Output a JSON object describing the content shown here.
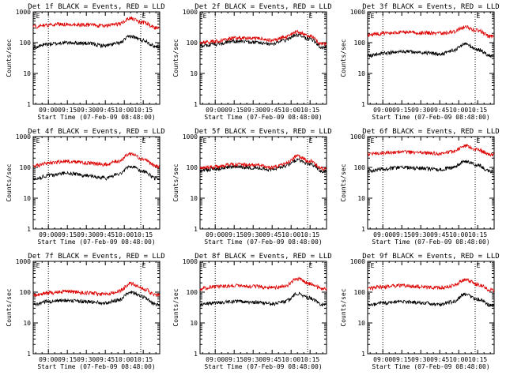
{
  "figure": {
    "background": "#ffffff",
    "events_color": "#000000",
    "lld_color": "#dd0000",
    "marker_label": "E"
  },
  "chart_data": [
    {
      "type": "line",
      "title": "Det 1f BLACK = Events, RED = LLD",
      "xlabel": "Start Time (07-Feb-09 08:48:00)",
      "ylabel": "Counts/sec",
      "yscale": "log",
      "ylim": [
        1,
        1000
      ],
      "x_ticks": [
        "09:00",
        "09:15",
        "09:30",
        "09:45",
        "10:00",
        "10:15"
      ],
      "y_ticks": [
        "1",
        "10",
        "100",
        "1000"
      ],
      "dotted_lines_at": [
        "09:00",
        "10:13"
      ],
      "series": [
        {
          "name": "Events",
          "color": "#000000",
          "x": [
            "08:48",
            "09:00",
            "09:15",
            "09:30",
            "09:45",
            "09:55",
            "10:05",
            "10:15",
            "10:25"
          ],
          "values": [
            70,
            90,
            100,
            95,
            80,
            95,
            160,
            120,
            75
          ]
        },
        {
          "name": "LLD",
          "color": "#dd0000",
          "x": [
            "08:48",
            "09:00",
            "09:15",
            "09:30",
            "09:45",
            "09:55",
            "10:05",
            "10:15",
            "10:25"
          ],
          "values": [
            330,
            380,
            400,
            380,
            350,
            400,
            620,
            450,
            310
          ]
        }
      ]
    },
    {
      "type": "line",
      "title": "Det 2f BLACK = Events, RED = LLD",
      "xlabel": "Start Time (07-Feb-09 08:48:00)",
      "ylabel": "Counts/sec",
      "yscale": "log",
      "ylim": [
        1,
        1000
      ],
      "x_ticks": [
        "09:00",
        "09:15",
        "09:30",
        "09:45",
        "10:00",
        "10:15"
      ],
      "y_ticks": [
        "1",
        "10",
        "100",
        "1000"
      ],
      "dotted_lines_at": [
        "09:00",
        "10:13"
      ],
      "series": [
        {
          "name": "Events",
          "color": "#000000",
          "x": [
            "08:48",
            "09:00",
            "09:15",
            "09:30",
            "09:45",
            "09:55",
            "10:05",
            "10:15",
            "10:25"
          ],
          "values": [
            80,
            90,
            110,
            105,
            90,
            120,
            180,
            130,
            70
          ]
        },
        {
          "name": "LLD",
          "color": "#dd0000",
          "x": [
            "08:48",
            "09:00",
            "09:15",
            "09:30",
            "09:45",
            "09:55",
            "10:05",
            "10:15",
            "10:25"
          ],
          "values": [
            100,
            110,
            140,
            140,
            120,
            150,
            220,
            160,
            90
          ]
        }
      ]
    },
    {
      "type": "line",
      "title": "Det 3f BLACK = Events, RED = LLD",
      "xlabel": "Start Time (07-Feb-09 08:48:00)",
      "ylabel": "Counts/sec",
      "yscale": "log",
      "ylim": [
        1,
        1000
      ],
      "x_ticks": [
        "09:00",
        "09:15",
        "09:30",
        "09:45",
        "10:00",
        "10:15"
      ],
      "y_ticks": [
        "1",
        "10",
        "100",
        "1000"
      ],
      "dotted_lines_at": [
        "09:00",
        "10:13"
      ],
      "series": [
        {
          "name": "Events",
          "color": "#000000",
          "x": [
            "08:48",
            "09:00",
            "09:15",
            "09:30",
            "09:45",
            "09:55",
            "10:05",
            "10:15",
            "10:25"
          ],
          "values": [
            38,
            45,
            52,
            48,
            42,
            55,
            90,
            60,
            38
          ]
        },
        {
          "name": "LLD",
          "color": "#dd0000",
          "x": [
            "08:48",
            "09:00",
            "09:15",
            "09:30",
            "09:45",
            "09:55",
            "10:05",
            "10:15",
            "10:25"
          ],
          "values": [
            180,
            200,
            220,
            210,
            200,
            220,
            320,
            250,
            160
          ]
        }
      ]
    },
    {
      "type": "line",
      "title": "Det 4f BLACK = Events, RED = LLD",
      "xlabel": "Start Time (07-Feb-09 08:48:00)",
      "ylabel": "Counts/sec",
      "yscale": "log",
      "ylim": [
        1,
        1000
      ],
      "x_ticks": [
        "09:00",
        "09:15",
        "09:30",
        "09:45",
        "10:00",
        "10:15"
      ],
      "y_ticks": [
        "1",
        "10",
        "100",
        "1000"
      ],
      "dotted_lines_at": [
        "09:00",
        "10:13"
      ],
      "series": [
        {
          "name": "Events",
          "color": "#000000",
          "x": [
            "08:48",
            "09:00",
            "09:15",
            "09:30",
            "09:45",
            "09:55",
            "10:05",
            "10:15",
            "10:25"
          ],
          "values": [
            40,
            55,
            65,
            55,
            45,
            60,
            110,
            75,
            45
          ]
        },
        {
          "name": "LLD",
          "color": "#dd0000",
          "x": [
            "08:48",
            "09:00",
            "09:15",
            "09:30",
            "09:45",
            "09:55",
            "10:05",
            "10:15",
            "10:25"
          ],
          "values": [
            110,
            140,
            160,
            140,
            125,
            160,
            280,
            190,
            110
          ]
        }
      ]
    },
    {
      "type": "line",
      "title": "Det 5f BLACK = Events, RED = LLD",
      "xlabel": "Start Time (07-Feb-09 08:48:00)",
      "ylabel": "Counts/sec",
      "yscale": "log",
      "ylim": [
        1,
        1000
      ],
      "x_ticks": [
        "09:00",
        "09:15",
        "09:30",
        "09:45",
        "10:00",
        "10:15"
      ],
      "y_ticks": [
        "1",
        "10",
        "100",
        "1000"
      ],
      "dotted_lines_at": [
        "09:00",
        "10:13"
      ],
      "series": [
        {
          "name": "Events",
          "color": "#000000",
          "x": [
            "08:48",
            "09:00",
            "09:15",
            "09:30",
            "09:45",
            "09:55",
            "10:05",
            "10:15",
            "10:25"
          ],
          "values": [
            80,
            90,
            105,
            100,
            85,
            110,
            180,
            130,
            75
          ]
        },
        {
          "name": "LLD",
          "color": "#dd0000",
          "x": [
            "08:48",
            "09:00",
            "09:15",
            "09:30",
            "09:45",
            "09:55",
            "10:05",
            "10:15",
            "10:25"
          ],
          "values": [
            95,
            105,
            125,
            120,
            100,
            130,
            230,
            160,
            90
          ]
        }
      ]
    },
    {
      "type": "line",
      "title": "Det 6f BLACK = Events, RED = LLD",
      "xlabel": "Start Time (07-Feb-09 08:48:00)",
      "ylabel": "Counts/sec",
      "yscale": "log",
      "ylim": [
        1,
        1000
      ],
      "x_ticks": [
        "09:00",
        "09:15",
        "09:30",
        "09:45",
        "10:00",
        "10:15"
      ],
      "y_ticks": [
        "1",
        "10",
        "100",
        "1000"
      ],
      "dotted_lines_at": [
        "09:00",
        "10:13"
      ],
      "series": [
        {
          "name": "Events",
          "color": "#000000",
          "x": [
            "08:48",
            "09:00",
            "09:15",
            "09:30",
            "09:45",
            "09:55",
            "10:05",
            "10:15",
            "10:25"
          ],
          "values": [
            75,
            90,
            100,
            95,
            85,
            100,
            160,
            120,
            75
          ]
        },
        {
          "name": "LLD",
          "color": "#dd0000",
          "x": [
            "08:48",
            "09:00",
            "09:15",
            "09:30",
            "09:45",
            "09:55",
            "10:05",
            "10:15",
            "10:25"
          ],
          "values": [
            270,
            300,
            320,
            300,
            280,
            320,
            500,
            380,
            260
          ]
        }
      ]
    },
    {
      "type": "line",
      "title": "Det 7f BLACK = Events, RED = LLD",
      "xlabel": "Start Time (07-Feb-09 08:48:00)",
      "ylabel": "Counts/sec",
      "yscale": "log",
      "ylim": [
        1,
        1000
      ],
      "x_ticks": [
        "09:00",
        "09:15",
        "09:30",
        "09:45",
        "10:00",
        "10:15"
      ],
      "y_ticks": [
        "1",
        "10",
        "100",
        "1000"
      ],
      "dotted_lines_at": [
        "09:00",
        "10:13"
      ],
      "series": [
        {
          "name": "Events",
          "color": "#000000",
          "x": [
            "08:48",
            "09:00",
            "09:15",
            "09:30",
            "09:45",
            "09:55",
            "10:05",
            "10:15",
            "10:25"
          ],
          "values": [
            40,
            50,
            55,
            50,
            45,
            55,
            100,
            70,
            40
          ]
        },
        {
          "name": "LLD",
          "color": "#dd0000",
          "x": [
            "08:48",
            "09:00",
            "09:15",
            "09:30",
            "09:45",
            "09:55",
            "10:05",
            "10:15",
            "10:25"
          ],
          "values": [
            80,
            95,
            105,
            95,
            85,
            105,
            190,
            130,
            80
          ]
        }
      ]
    },
    {
      "type": "line",
      "title": "Det 8f BLACK = Events, RED = LLD",
      "xlabel": "Start Time (07-Feb-09 08:48:00)",
      "ylabel": "Counts/sec",
      "yscale": "log",
      "ylim": [
        1,
        1000
      ],
      "x_ticks": [
        "09:00",
        "09:15",
        "09:30",
        "09:45",
        "10:00",
        "10:15"
      ],
      "y_ticks": [
        "1",
        "10",
        "100",
        "1000"
      ],
      "dotted_lines_at": [
        "09:00",
        "10:13"
      ],
      "series": [
        {
          "name": "Events",
          "color": "#000000",
          "x": [
            "08:48",
            "09:00",
            "09:15",
            "09:30",
            "09:45",
            "09:55",
            "10:05",
            "10:15",
            "10:25"
          ],
          "values": [
            40,
            45,
            50,
            47,
            42,
            50,
            90,
            65,
            40
          ]
        },
        {
          "name": "LLD",
          "color": "#dd0000",
          "x": [
            "08:48",
            "09:00",
            "09:15",
            "09:30",
            "09:45",
            "09:55",
            "10:05",
            "10:15",
            "10:25"
          ],
          "values": [
            130,
            150,
            165,
            155,
            140,
            160,
            270,
            190,
            130
          ]
        }
      ]
    },
    {
      "type": "line",
      "title": "Det 9f BLACK = Events, RED = LLD",
      "xlabel": "Start Time (07-Feb-09 08:48:00)",
      "ylabel": "Counts/sec",
      "yscale": "log",
      "ylim": [
        1,
        1000
      ],
      "x_ticks": [
        "09:00",
        "09:15",
        "09:30",
        "09:45",
        "10:00",
        "10:15"
      ],
      "y_ticks": [
        "1",
        "10",
        "100",
        "1000"
      ],
      "dotted_lines_at": [
        "09:00",
        "10:13"
      ],
      "series": [
        {
          "name": "Events",
          "color": "#000000",
          "x": [
            "08:48",
            "09:00",
            "09:15",
            "09:30",
            "09:45",
            "09:55",
            "10:05",
            "10:15",
            "10:25"
          ],
          "values": [
            38,
            45,
            50,
            46,
            40,
            48,
            85,
            60,
            38
          ]
        },
        {
          "name": "LLD",
          "color": "#dd0000",
          "x": [
            "08:48",
            "09:00",
            "09:15",
            "09:30",
            "09:45",
            "09:55",
            "10:05",
            "10:15",
            "10:25"
          ],
          "values": [
            130,
            150,
            165,
            150,
            140,
            160,
            260,
            180,
            120
          ]
        }
      ]
    }
  ]
}
